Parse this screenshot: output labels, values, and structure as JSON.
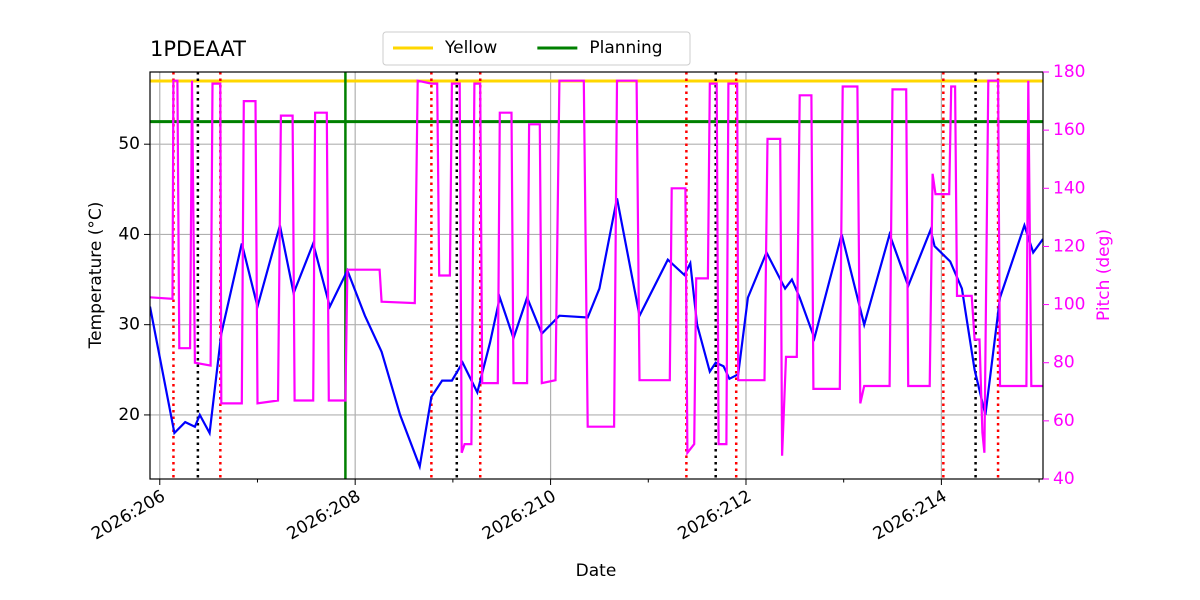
{
  "chart_data": {
    "type": "line",
    "title": "1PDEAAT",
    "xlabel": "Date",
    "ylabel": "Temperature (°C)",
    "y2label": "Pitch (deg)",
    "xlim": [
      205.9,
      215.04
    ],
    "xticks": [
      {
        "value": 206,
        "label": "2026:206"
      },
      {
        "value": 208,
        "label": "2026:208"
      },
      {
        "value": 210,
        "label": "2026:210"
      },
      {
        "value": 212,
        "label": "2026:212"
      },
      {
        "value": 214,
        "label": "2026:214"
      }
    ],
    "xminorticks": [
      207,
      209,
      211,
      213,
      215
    ],
    "ylim": [
      12.9,
      58
    ],
    "yticks": [
      20,
      30,
      40,
      50
    ],
    "y2lim": [
      40,
      180
    ],
    "y2ticks": [
      40,
      60,
      80,
      100,
      120,
      140,
      160,
      180
    ],
    "y2color": "#ff00ff",
    "grid": true,
    "legend": "top",
    "hlines": [
      {
        "name": "Yellow",
        "color": "#ffd700",
        "y": 57
      },
      {
        "name": "Planning",
        "color": "#008000",
        "y": 52.5
      }
    ],
    "vlines": [
      {
        "x": 207.9,
        "color": "#008000",
        "style": "solid"
      },
      {
        "x": 206.14,
        "color": "#ff0000",
        "style": "dotted"
      },
      {
        "x": 206.62,
        "color": "#ff0000",
        "style": "dotted"
      },
      {
        "x": 208.78,
        "color": "#ff0000",
        "style": "dotted"
      },
      {
        "x": 209.28,
        "color": "#ff0000",
        "style": "dotted"
      },
      {
        "x": 211.39,
        "color": "#ff0000",
        "style": "dotted"
      },
      {
        "x": 211.9,
        "color": "#ff0000",
        "style": "dotted"
      },
      {
        "x": 214.02,
        "color": "#ff0000",
        "style": "dotted"
      },
      {
        "x": 214.58,
        "color": "#ff0000",
        "style": "dotted"
      },
      {
        "x": 206.39,
        "color": "#000000",
        "style": "dotted"
      },
      {
        "x": 209.04,
        "color": "#000000",
        "style": "dotted"
      },
      {
        "x": 211.69,
        "color": "#000000",
        "style": "dotted"
      },
      {
        "x": 214.35,
        "color": "#000000",
        "style": "dotted"
      }
    ],
    "series": [
      {
        "color": "#0000ff",
        "axis": "y",
        "x": [
          205.9,
          206.15,
          206.26,
          206.36,
          206.41,
          206.51,
          206.63,
          206.84,
          207.0,
          207.23,
          207.37,
          207.57,
          207.74,
          207.92,
          208.1,
          208.27,
          208.46,
          208.66,
          208.78,
          208.89,
          208.99,
          209.1,
          209.25,
          209.38,
          209.48,
          209.62,
          209.76,
          209.91,
          210.09,
          210.38,
          210.5,
          210.68,
          210.91,
          211.2,
          211.37,
          211.43,
          211.5,
          211.63,
          211.69,
          211.77,
          211.83,
          211.92,
          212.02,
          212.21,
          212.4,
          212.47,
          212.55,
          212.7,
          212.98,
          213.21,
          213.47,
          213.66,
          213.89,
          213.93,
          214.09,
          214.21,
          214.34,
          214.45,
          214.6,
          214.85,
          214.94,
          215.04
        ],
        "values": [
          32,
          18,
          19.2,
          18.7,
          20,
          18,
          29,
          39,
          32,
          41,
          33.5,
          39,
          32,
          36,
          31,
          27,
          20,
          14.3,
          22,
          23.8,
          23.8,
          25.8,
          22.5,
          28,
          33,
          28.5,
          33,
          29,
          31,
          30.8,
          34,
          44,
          31,
          37.2,
          35.5,
          36.8,
          30,
          24.8,
          25.8,
          25.4,
          24,
          24.5,
          33,
          38,
          34,
          35,
          33,
          28.5,
          40,
          30,
          40,
          34.3,
          40.5,
          38.7,
          37,
          34,
          25,
          20,
          33,
          41,
          38,
          39.5
        ]
      },
      {
        "color": "#ff00ff",
        "axis": "y2",
        "x": [
          205.9,
          206.13,
          206.14,
          206.18,
          206.2,
          206.31,
          206.33,
          206.36,
          206.52,
          206.54,
          206.62,
          206.63,
          206.84,
          206.86,
          206.98,
          207.0,
          207.21,
          207.24,
          207.36,
          207.38,
          207.57,
          207.59,
          207.71,
          207.73,
          207.9,
          207.92,
          208.25,
          208.27,
          208.61,
          208.64,
          208.78,
          208.84,
          208.86,
          208.97,
          208.99,
          209.07,
          209.09,
          209.12,
          209.19,
          209.22,
          209.28,
          209.3,
          209.46,
          209.48,
          209.6,
          209.62,
          209.76,
          209.78,
          209.89,
          209.91,
          210.05,
          210.09,
          210.34,
          210.38,
          210.65,
          210.68,
          210.88,
          210.91,
          211.22,
          211.24,
          211.38,
          211.4,
          211.47,
          211.49,
          211.61,
          211.63,
          211.7,
          211.72,
          211.8,
          211.82,
          211.91,
          211.92,
          212.19,
          212.22,
          212.35,
          212.37,
          212.41,
          212.52,
          212.55,
          212.67,
          212.69,
          212.96,
          212.99,
          213.14,
          213.17,
          213.21,
          213.47,
          213.5,
          213.64,
          213.66,
          213.88,
          213.91,
          213.94,
          214.08,
          214.1,
          214.14,
          214.16,
          214.31,
          214.34,
          214.39,
          214.42,
          214.44,
          214.48,
          214.58,
          214.6,
          214.87,
          214.89,
          214.92,
          215.04
        ],
        "values": [
          102.5,
          102,
          177,
          177,
          85,
          85,
          177,
          80,
          79,
          176,
          176,
          66,
          66,
          170,
          170,
          66,
          67,
          165,
          165,
          67,
          67,
          166,
          166,
          67,
          67,
          112,
          112,
          101,
          100.5,
          177,
          176,
          176,
          110,
          110,
          176,
          176,
          49,
          52,
          52,
          176,
          176,
          73,
          73,
          166,
          166,
          73,
          73,
          162,
          162,
          73,
          74,
          177,
          177,
          58,
          58,
          177,
          177,
          74,
          74,
          140,
          140,
          49,
          52,
          109,
          109,
          176,
          176,
          52,
          52,
          176,
          176,
          74,
          74,
          157,
          157,
          48,
          82,
          82,
          172,
          172,
          71,
          71,
          175,
          175,
          66,
          72,
          72,
          174,
          174,
          72,
          72,
          145,
          138,
          138,
          175,
          175,
          103,
          103,
          88,
          88,
          56,
          49,
          177,
          177,
          72,
          72,
          177,
          72,
          72
        ]
      }
    ]
  }
}
